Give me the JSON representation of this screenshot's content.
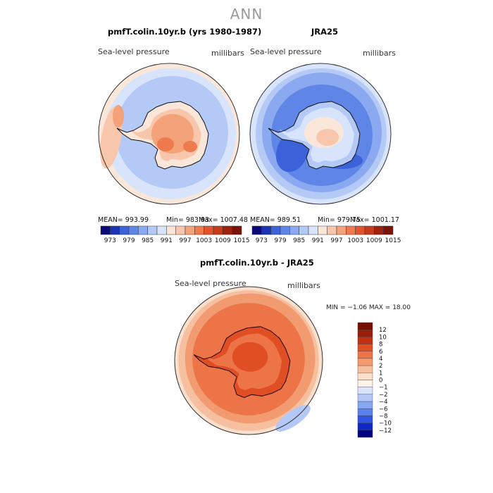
{
  "figure": {
    "title": "ANN",
    "palette": {
      "abs": [
        "#0a0a78",
        "#1c34b4",
        "#3b62d8",
        "#5f86e6",
        "#8aa9f0",
        "#b4c9f6",
        "#d8e4fb",
        "#fbe7da",
        "#f8c6aa",
        "#f4a27a",
        "#ee7a4e",
        "#e2552c",
        "#c83a1c",
        "#9e2210",
        "#7a1206"
      ],
      "diff": [
        "#000080",
        "#0d28c8",
        "#2f55e4",
        "#5a80ee",
        "#86a6f4",
        "#b4c8f8",
        "#d9e4fb",
        "#fdf2ea",
        "#fadfcc",
        "#f6c0a0",
        "#f29a70",
        "#ec7446",
        "#e04e24",
        "#c23014",
        "#9a1c0a",
        "#761004"
      ]
    }
  },
  "chart_data": [
    {
      "type": "heatmap",
      "id": "model",
      "title": "pmfT.colin.10yr.b (yrs 1980-1987)",
      "variable": "Sea-level pressure",
      "units": "millibars",
      "mean_text": "MEAN= 993.99",
      "min_text": "Min= 983.93",
      "max_text": "Max= 1007.48",
      "mean": 993.99,
      "min": 983.93,
      "max": 1007.48,
      "colorbar_levels": [
        "973",
        "979",
        "985",
        "991",
        "997",
        "1003",
        "1009",
        "1015"
      ]
    },
    {
      "type": "heatmap",
      "id": "obs",
      "title": "JRA25",
      "variable": "Sea-level pressure",
      "units": "millibars",
      "mean_text": "MEAN= 989.51",
      "min_text": "Min= 979.75",
      "max_text": "Max= 1001.17",
      "mean": 989.51,
      "min": 979.75,
      "max": 1001.17,
      "colorbar_levels": [
        "973",
        "979",
        "985",
        "991",
        "997",
        "1003",
        "1009",
        "1015"
      ]
    },
    {
      "type": "heatmap",
      "id": "diff",
      "title": "pmfT.colin.10yr.b - JRA25",
      "variable": "Sea-level pressure",
      "units": "millibars",
      "minmax_text": "MIN =  −1.06 MAX =  18.00",
      "min": -1.06,
      "max": 18.0,
      "colorbar_levels": [
        "12",
        "10",
        "8",
        "6",
        "4",
        "2",
        "1",
        "0",
        "−1",
        "−2",
        "−4",
        "−6",
        "−8",
        "−10",
        "−12"
      ]
    }
  ]
}
